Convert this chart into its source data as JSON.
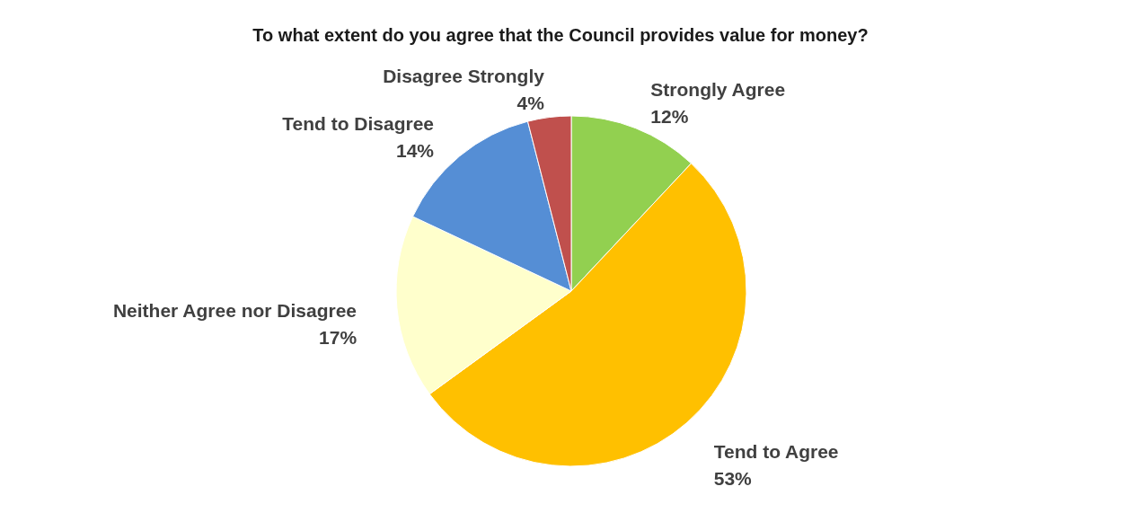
{
  "chart_data": {
    "type": "pie",
    "title": "To what extent do you agree that the Council provides value for money?",
    "categories": [
      "Strongly Agree",
      "Tend to Agree",
      "Neither Agree nor Disagree",
      "Tend to Disagree",
      "Disagree Strongly"
    ],
    "values": [
      12,
      53,
      17,
      14,
      4
    ],
    "colors": [
      "#92d050",
      "#ffc000",
      "#ffffcc",
      "#558ed5",
      "#c0504d"
    ],
    "value_labels": [
      "12%",
      "53%",
      "17%",
      "14%",
      "4%"
    ]
  }
}
